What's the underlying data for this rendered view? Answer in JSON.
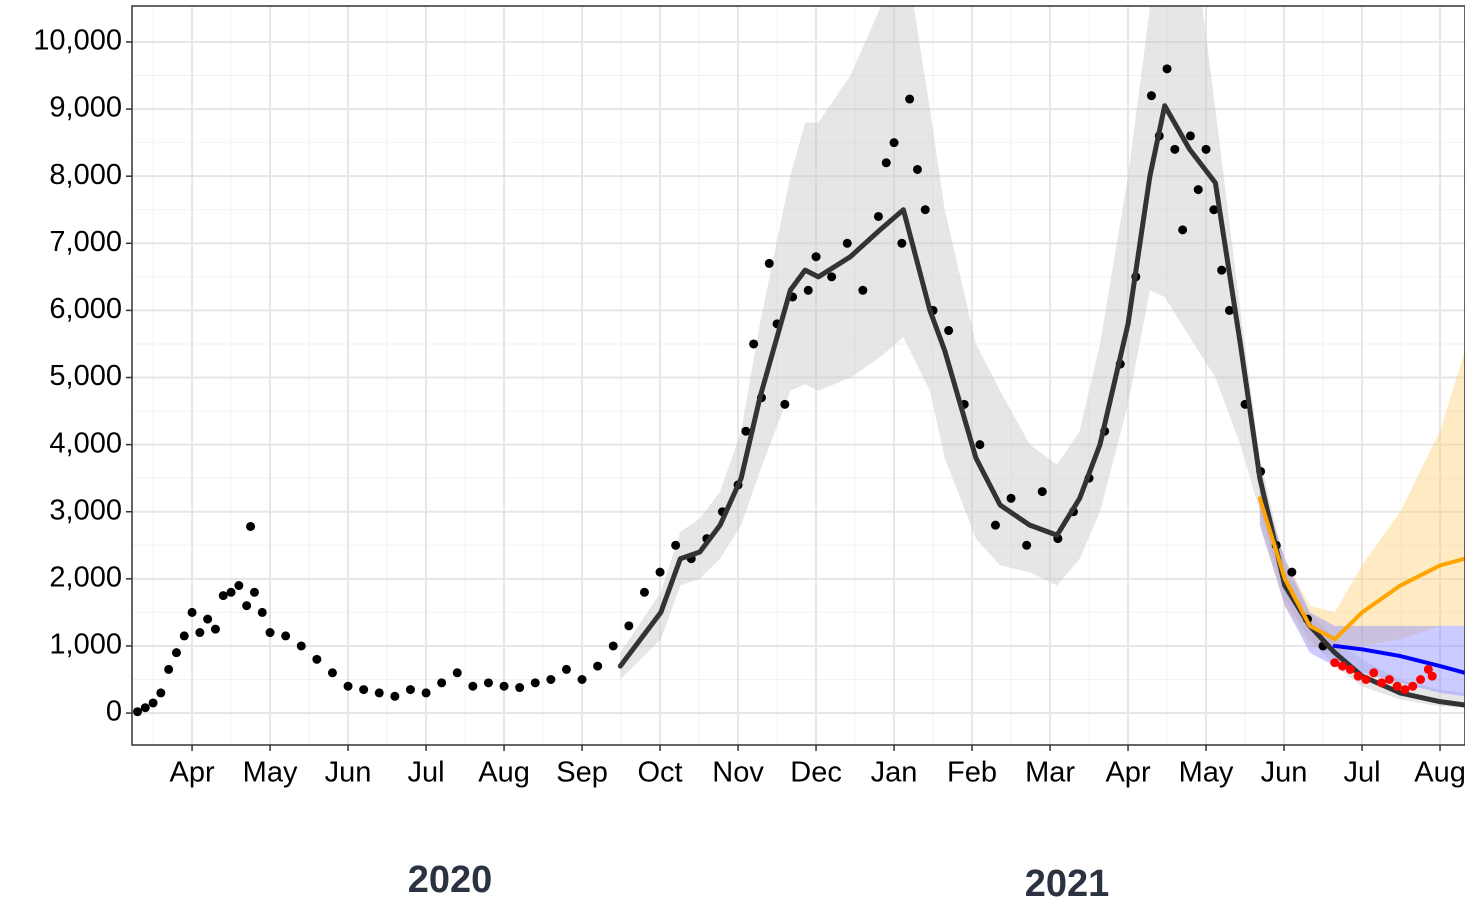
{
  "chart_data": {
    "type": "line",
    "xlim": [
      3.23,
      20.32
    ],
    "ylim": [
      -476,
      10536
    ],
    "xticks": [
      {
        "value": 4,
        "label": "Apr"
      },
      {
        "value": 5,
        "label": "May"
      },
      {
        "value": 6,
        "label": "Jun"
      },
      {
        "value": 7,
        "label": "Jul"
      },
      {
        "value": 8,
        "label": "Aug"
      },
      {
        "value": 9,
        "label": "Sep"
      },
      {
        "value": 10,
        "label": "Oct"
      },
      {
        "value": 11,
        "label": "Nov"
      },
      {
        "value": 12,
        "label": "Dec"
      },
      {
        "value": 13,
        "label": "Jan"
      },
      {
        "value": 14,
        "label": "Feb"
      },
      {
        "value": 15,
        "label": "Mar"
      },
      {
        "value": 16,
        "label": "Apr"
      },
      {
        "value": 17,
        "label": "May"
      },
      {
        "value": 18,
        "label": "Jun"
      },
      {
        "value": 19,
        "label": "Jul"
      },
      {
        "value": 20,
        "label": "Aug"
      }
    ],
    "yticks": [
      0,
      {
        "value": 1000,
        "label": "1,000"
      },
      {
        "value": 2000,
        "label": "2,000"
      },
      {
        "value": 3000,
        "label": "3,000"
      },
      {
        "value": 4000,
        "label": "4,000"
      },
      {
        "value": 5000,
        "label": "5,000"
      },
      {
        "value": 6000,
        "label": "6,000"
      },
      {
        "value": 7000,
        "label": "7,000"
      },
      {
        "value": 8000,
        "label": "8,000"
      },
      {
        "value": 9000,
        "label": "9,000"
      },
      {
        "value": 10000,
        "label": "10,000"
      }
    ],
    "x_group_labels": [
      "2020",
      "2021"
    ],
    "grid": true,
    "series": [
      {
        "type": "band",
        "color": "#c8c8c8",
        "x": [
          9.49,
          10.01,
          10.26,
          10.51,
          10.77,
          11.04,
          11.28,
          11.67,
          11.86,
          12.03,
          12.44,
          12.82,
          13.12,
          13.46,
          13.65,
          14.05,
          14.36,
          14.74,
          15.09,
          15.38,
          15.64,
          16.0,
          16.28,
          16.47,
          16.79,
          17.12,
          17.44,
          17.69,
          18.01,
          18.33,
          18.65,
          19.0,
          19.49,
          20.0,
          20.32
        ],
        "lower": [
          500,
          1100,
          1900,
          2000,
          2300,
          2800,
          3600,
          4800,
          4900,
          4800,
          5000,
          5300,
          5600,
          4800,
          3800,
          2600,
          2200,
          2100,
          1900,
          2300,
          3000,
          4600,
          6300,
          6200,
          5600,
          5000,
          4000,
          3000,
          1700,
          1100,
          700,
          400,
          200,
          100,
          80
        ],
        "upper": [
          900,
          1800,
          2700,
          2900,
          3300,
          4200,
          5800,
          8000,
          8800,
          8800,
          9500,
          10500,
          11500,
          9000,
          7500,
          5500,
          4800,
          4000,
          3700,
          4200,
          5500,
          8000,
          10500,
          13000,
          12000,
          9000,
          6000,
          3800,
          2200,
          1500,
          1100,
          800,
          500,
          350,
          300
        ]
      },
      {
        "type": "band",
        "color": "#ffd27a",
        "x": [
          17.69,
          18.01,
          18.33,
          18.65,
          19.0,
          19.49,
          20.0,
          20.32
        ],
        "lower": [
          2800,
          1600,
          1000,
          900,
          1000,
          1100,
          1300,
          1300
        ],
        "upper": [
          3500,
          2300,
          1600,
          1500,
          2200,
          3000,
          4200,
          5400
        ]
      },
      {
        "type": "band",
        "color": "#8c8cff",
        "x": [
          17.69,
          18.01,
          18.33,
          18.65,
          19.0,
          19.49,
          20.0,
          20.32
        ],
        "lower": [
          2800,
          1600,
          900,
          700,
          600,
          450,
          300,
          250
        ],
        "upper": [
          3500,
          2300,
          1500,
          1300,
          1300,
          1300,
          1300,
          1300
        ]
      },
      {
        "type": "scatter",
        "color": "#000000",
        "x": [
          3.3,
          3.4,
          3.5,
          3.6,
          3.7,
          3.8,
          3.9,
          4.0,
          4.1,
          4.2,
          4.3,
          4.4,
          4.5,
          4.6,
          4.7,
          4.75,
          4.8,
          4.9,
          5.0,
          5.2,
          5.4,
          5.6,
          5.8,
          6.0,
          6.2,
          6.4,
          6.6,
          6.8,
          7.0,
          7.2,
          7.4,
          7.6,
          7.8,
          8.0,
          8.2,
          8.4,
          8.6,
          8.8,
          9.0,
          9.2,
          9.4,
          9.6,
          9.8,
          10.0,
          10.2,
          10.4,
          10.6,
          10.8,
          11.0,
          11.1,
          11.2,
          11.3,
          11.4,
          11.5,
          11.6,
          11.7,
          11.9,
          12.0,
          12.2,
          12.4,
          12.6,
          12.8,
          12.9,
          13.0,
          13.1,
          13.2,
          13.3,
          13.4,
          13.5,
          13.7,
          13.9,
          14.1,
          14.3,
          14.5,
          14.7,
          14.9,
          15.1,
          15.3,
          15.5,
          15.7,
          15.9,
          16.1,
          16.3,
          16.4,
          16.5,
          16.6,
          16.7,
          16.8,
          16.9,
          17.0,
          17.1,
          17.2,
          17.3,
          17.5,
          17.7,
          17.9,
          18.1,
          18.3,
          18.5
        ],
        "values": [
          20,
          80,
          150,
          300,
          650,
          900,
          1150,
          1500,
          1200,
          1400,
          1250,
          1750,
          1800,
          1900,
          1600,
          2780,
          1800,
          1500,
          1200,
          1150,
          1000,
          800,
          600,
          400,
          350,
          300,
          250,
          350,
          300,
          450,
          600,
          400,
          450,
          400,
          380,
          450,
          500,
          650,
          500,
          700,
          1000,
          1300,
          1800,
          2100,
          2500,
          2300,
          2600,
          3000,
          3400,
          4200,
          5500,
          4700,
          6700,
          5800,
          4600,
          6200,
          6300,
          6800,
          6500,
          7000,
          6300,
          7400,
          8200,
          8500,
          7000,
          9150,
          8100,
          7500,
          6000,
          5700,
          4600,
          4000,
          2800,
          3200,
          2500,
          3300,
          2600,
          3000,
          3500,
          4200,
          5200,
          6500,
          9200,
          8600,
          9600,
          8400,
          7200,
          8600,
          7800,
          8400,
          7500,
          6600,
          6000,
          4600,
          3600,
          2500,
          2100,
          1400,
          1000
        ]
      },
      {
        "type": "line",
        "color": "#333333",
        "width": 5,
        "x": [
          9.49,
          10.01,
          10.26,
          10.51,
          10.77,
          11.04,
          11.28,
          11.67,
          11.86,
          12.03,
          12.44,
          12.82,
          13.12,
          13.46,
          13.65,
          14.05,
          14.36,
          14.74,
          15.09,
          15.38,
          15.64,
          16.0,
          16.28,
          16.47,
          16.79,
          17.12,
          17.44,
          17.69,
          18.01,
          18.33,
          18.65,
          19.0,
          19.49,
          20.0,
          20.32
        ],
        "values": [
          700,
          1500,
          2300,
          2400,
          2800,
          3500,
          4700,
          6300,
          6600,
          6500,
          6800,
          7200,
          7500,
          6000,
          5400,
          3800,
          3100,
          2800,
          2650,
          3200,
          4000,
          5800,
          8000,
          9050,
          8400,
          7900,
          5500,
          3500,
          1900,
          1300,
          900,
          550,
          300,
          170,
          120
        ]
      },
      {
        "type": "line",
        "color": "#ffa500",
        "width": 4,
        "x": [
          17.69,
          18.01,
          18.33,
          18.65,
          19.0,
          19.49,
          20.0,
          20.32
        ],
        "values": [
          3200,
          2000,
          1300,
          1100,
          1500,
          1900,
          2200,
          2300
        ]
      },
      {
        "type": "line",
        "color": "#0000ff",
        "width": 4,
        "x": [
          18.65,
          19.0,
          19.49,
          20.0,
          20.32
        ],
        "values": [
          1000,
          950,
          850,
          700,
          600
        ]
      },
      {
        "type": "scatter",
        "color": "#ff0000",
        "x": [
          18.65,
          18.75,
          18.85,
          18.95,
          19.05,
          19.15,
          19.25,
          19.35,
          19.45,
          19.55,
          19.65,
          19.75,
          19.85,
          19.9
        ],
        "values": [
          750,
          700,
          650,
          550,
          500,
          600,
          450,
          500,
          400,
          350,
          400,
          500,
          650,
          550
        ]
      }
    ]
  }
}
